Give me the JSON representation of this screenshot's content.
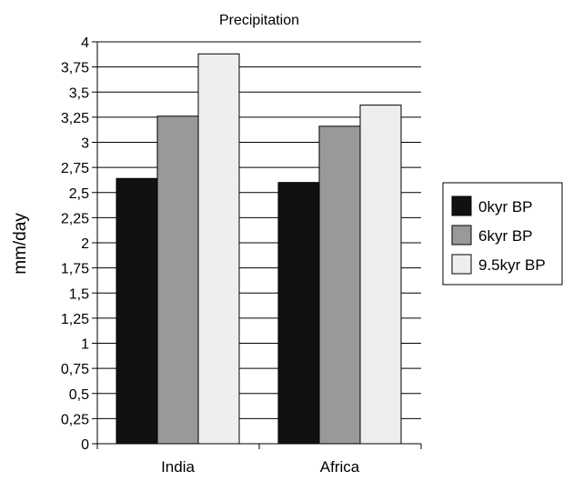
{
  "chart_data": {
    "type": "bar",
    "title": "Precipitation",
    "xlabel": "",
    "ylabel": "mm/day",
    "categories": [
      "India",
      "Africa"
    ],
    "ylim": [
      0,
      4
    ],
    "yticks": [
      "0",
      "0,25",
      "0,5",
      "0,75",
      "1",
      "1,25",
      "1,5",
      "1,75",
      "2",
      "2,25",
      "2,5",
      "2,75",
      "3",
      "3,25",
      "3,5",
      "3,75",
      "4"
    ],
    "grid": true,
    "legend_position": "right",
    "series": [
      {
        "name": "0kyr BP",
        "values": [
          2.64,
          2.6
        ],
        "color": "#111111"
      },
      {
        "name": "6kyr BP",
        "values": [
          3.26,
          3.16
        ],
        "color": "#999999"
      },
      {
        "name": "9.5kyr BP",
        "values": [
          3.88,
          3.37
        ],
        "color": "#eeeeee"
      }
    ]
  }
}
